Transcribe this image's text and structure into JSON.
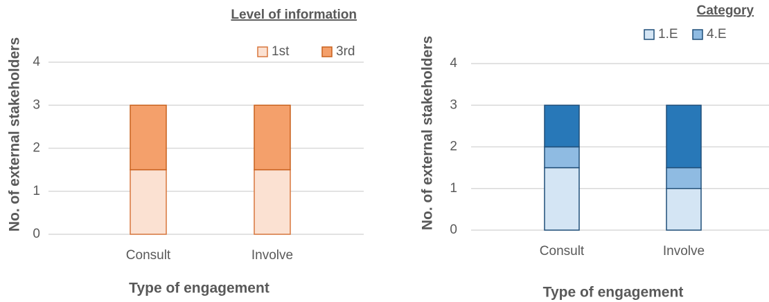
{
  "chart_data": [
    {
      "type": "bar",
      "stacked": true,
      "legend_title": "Level of information",
      "x_label": "Type of engagement",
      "y_label": "No. of external stakeholders",
      "categories": [
        "Consult",
        "Involve"
      ],
      "series": [
        {
          "name": "1st",
          "color": "#fbe1d2",
          "edge": "#d8763c",
          "values": [
            1.5,
            1.5
          ]
        },
        {
          "name": "3rd",
          "color": "#f4a06b",
          "edge": "#c8601c",
          "values": [
            1.5,
            1.5
          ]
        }
      ],
      "ylim": [
        0,
        4
      ],
      "yticks": [
        0,
        1,
        2,
        3,
        4
      ],
      "grid": true
    },
    {
      "type": "bar",
      "stacked": true,
      "legend_title": "Category",
      "x_label": "Type of engagement",
      "y_label": "No. of external stakeholders",
      "categories": [
        "Consult",
        "Involve"
      ],
      "series": [
        {
          "name": "1.E",
          "color": "#d4e5f4",
          "edge": "#1f4e79",
          "values": [
            1.5,
            1
          ]
        },
        {
          "name": "4.E",
          "color": "#8fbbe2",
          "edge": "#1f4e79",
          "values": [
            0.5,
            0.5
          ]
        },
        {
          "name": null,
          "color": "#2878b8",
          "edge": "#1f4e79",
          "values": [
            1,
            1.5
          ]
        }
      ],
      "ylim": [
        0,
        4
      ],
      "yticks": [
        0,
        1,
        2,
        3,
        4
      ],
      "grid": true
    }
  ]
}
